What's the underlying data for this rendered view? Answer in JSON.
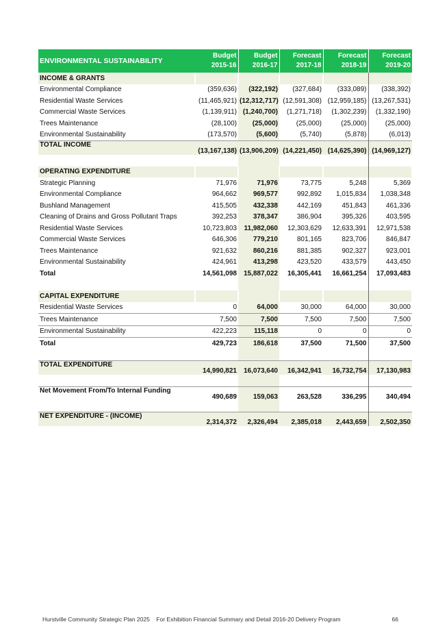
{
  "table": {
    "title": "ENVIRONMENTAL SUSTAINABILITY",
    "columns": [
      {
        "line1": "Budget",
        "line2": "2015-16"
      },
      {
        "line1": "Budget",
        "line2": "2016-17"
      },
      {
        "line1": "Forecast",
        "line2": "2017-18"
      },
      {
        "line1": "Forecast",
        "line2": "2018-19"
      },
      {
        "line1": "Forecast",
        "line2": "2019-20"
      }
    ],
    "rows": [
      {
        "type": "sec",
        "label": "INCOME & GRANTS"
      },
      {
        "type": "row",
        "label": "Environmental Compliance",
        "values": [
          "(359,636)",
          "(322,192)",
          "(327,684)",
          "(333,089)",
          "(338,392)"
        ]
      },
      {
        "type": "row",
        "label": "Residential Waste Services",
        "values": [
          "(11,465,921)",
          "(12,312,717)",
          "(12,591,308)",
          "(12,959,185)",
          "(13,267,531)"
        ]
      },
      {
        "type": "row",
        "label": "Commercial Waste Services",
        "values": [
          "(1,139,911)",
          "(1,240,700)",
          "(1,271,718)",
          "(1,302,239)",
          "(1,332,190)"
        ]
      },
      {
        "type": "row",
        "label": "Trees Maintenance",
        "values": [
          "(28,100)",
          "(25,000)",
          "(25,000)",
          "(25,000)",
          "(25,000)"
        ]
      },
      {
        "type": "row",
        "label": "Environmental Sustainability",
        "values": [
          "(173,570)",
          "(5,600)",
          "(5,740)",
          "(5,878)",
          "(6,013)"
        ]
      },
      {
        "type": "grand",
        "label": "TOTAL INCOME",
        "values": [
          "(13,167,138)",
          "(13,906,209)",
          "(14,221,450)",
          "(14,625,390)",
          "(14,969,127)"
        ]
      },
      {
        "type": "blank"
      },
      {
        "type": "sec",
        "label": "OPERATING EXPENDITURE"
      },
      {
        "type": "row",
        "label": "Strategic Planning",
        "values": [
          "71,976",
          "71,976",
          "73,775",
          "5,248",
          "5,369"
        ]
      },
      {
        "type": "row",
        "label": "Environmental Compliance",
        "values": [
          "964,662",
          "969,577",
          "992,892",
          "1,015,834",
          "1,038,348"
        ]
      },
      {
        "type": "row",
        "label": "Bushland Management",
        "values": [
          "415,505",
          "432,338",
          "442,169",
          "451,843",
          "461,336"
        ]
      },
      {
        "type": "row",
        "label": "Cleaning of Drains and Gross Pollutant Traps",
        "values": [
          "392,253",
          "378,347",
          "386,904",
          "395,326",
          "403,595"
        ]
      },
      {
        "type": "row",
        "label": "Residential Waste Services",
        "values": [
          "10,723,803",
          "11,982,060",
          "12,303,629",
          "12,633,391",
          "12,971,538"
        ]
      },
      {
        "type": "row",
        "label": "Commercial Waste Services",
        "values": [
          "646,306",
          "779,210",
          "801,165",
          "823,706",
          "846,847"
        ]
      },
      {
        "type": "row",
        "label": "Trees Maintenance",
        "values": [
          "921,632",
          "860,216",
          "881,385",
          "902,327",
          "923,001"
        ]
      },
      {
        "type": "row",
        "label": "Environmental Sustainability",
        "values": [
          "424,961",
          "413,298",
          "423,520",
          "433,579",
          "443,450"
        ]
      },
      {
        "type": "bold",
        "label": "Total",
        "values": [
          "14,561,098",
          "15,887,022",
          "16,305,441",
          "16,661,254",
          "17,093,483"
        ]
      },
      {
        "type": "blank"
      },
      {
        "type": "sec",
        "label": "CAPITAL EXPENDITURE"
      },
      {
        "type": "row",
        "label": "Residential Waste Services",
        "values": [
          "0",
          "64,000",
          "30,000",
          "64,000",
          "30,000"
        ]
      },
      {
        "type": "rule",
        "label": "Trees Maintenance",
        "values": [
          "7,500",
          "7,500",
          "7,500",
          "7,500",
          "7,500"
        ]
      },
      {
        "type": "rule",
        "label": "Environmental Sustainability",
        "values": [
          "422,223",
          "115,118",
          "0",
          "0",
          "0"
        ]
      },
      {
        "type": "boldrule",
        "label": "Total",
        "values": [
          "429,723",
          "186,618",
          "37,500",
          "71,500",
          "37,500"
        ]
      },
      {
        "type": "blank"
      },
      {
        "type": "grand",
        "label": "TOTAL EXPENDITURE",
        "values": [
          "14,990,821",
          "16,073,640",
          "16,342,941",
          "16,732,754",
          "17,130,983"
        ]
      },
      {
        "type": "blank"
      },
      {
        "type": "grandw",
        "label": "Net Movement From/To Internal Funding",
        "values": [
          "490,689",
          "159,063",
          "263,528",
          "336,295",
          "340,494"
        ]
      },
      {
        "type": "blank"
      },
      {
        "type": "grand",
        "label": "NET EXPENDITURE - (INCOME)",
        "values": [
          "2,314,372",
          "2,326,494",
          "2,385,018",
          "2,443,659",
          "2,502,350"
        ]
      }
    ]
  },
  "footer": {
    "text": "Hurstville Community Strategic Plan 2025    For Exhibition Financial Summary and Detail 2016-20 Delivery Program",
    "page": "66"
  }
}
